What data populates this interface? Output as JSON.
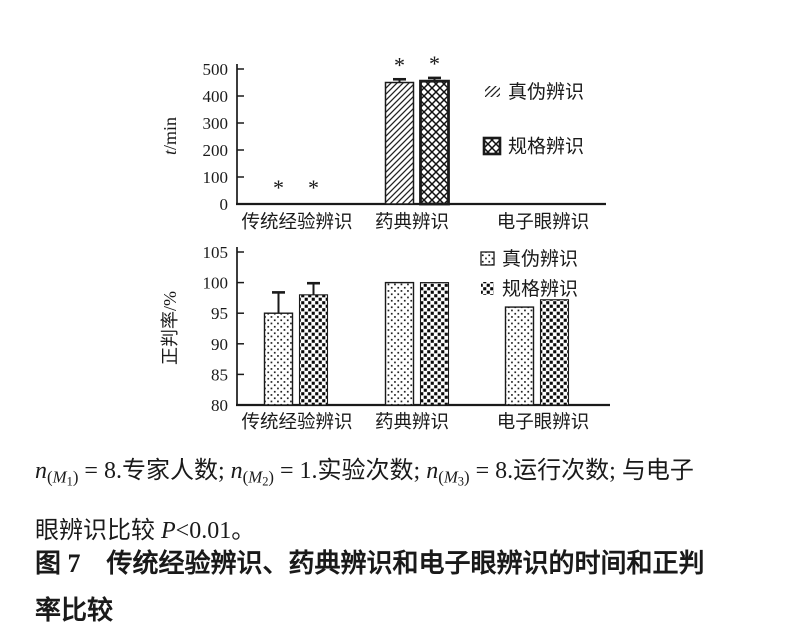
{
  "page": {
    "background": "#ffffff",
    "ink": "#1a1a1a"
  },
  "chart_data": [
    {
      "id": "time-chart",
      "type": "bar",
      "title": "",
      "xlabel": "",
      "ylabel": "t/min",
      "ylabel_parts": [
        {
          "t": "t",
          "italic": true
        },
        {
          "t": "/min",
          "italic": false
        }
      ],
      "ylim": [
        0,
        500
      ],
      "yticks": [
        0,
        100,
        200,
        300,
        400,
        500
      ],
      "grid": false,
      "legend_position": "right-top",
      "categories": [
        "传统经验辨识",
        "药典辨识",
        "电子眼辨识"
      ],
      "series": [
        {
          "name": "真伪辨识",
          "pattern": "diag",
          "values": [
            0,
            450,
            0
          ],
          "errors_plus": [
            0,
            12,
            0
          ]
        },
        {
          "name": "规格辨识",
          "pattern": "cross",
          "values": [
            0,
            455,
            0
          ],
          "errors_plus": [
            0,
            12,
            0
          ]
        }
      ],
      "significance": {
        "marker": "*",
        "per_category": [
          [
            true,
            true
          ],
          [
            true,
            true
          ],
          [
            false,
            false
          ]
        ],
        "meaning": "与电子眼辨识比较 P<0.01"
      }
    },
    {
      "id": "accuracy-chart",
      "type": "bar",
      "title": "",
      "xlabel": "",
      "ylabel": "正判率/%",
      "ylabel_parts": [
        {
          "t": "正判率/%",
          "italic": false
        }
      ],
      "ylim": [
        80,
        105
      ],
      "yticks": [
        80,
        85,
        90,
        95,
        100,
        105
      ],
      "grid": false,
      "legend_position": "right-top",
      "categories": [
        "传统经验辨识",
        "药典辨识",
        "电子眼辨识"
      ],
      "series": [
        {
          "name": "真伪辨识",
          "pattern": "dots",
          "values": [
            95,
            100,
            96
          ],
          "errors_plus": [
            3.4,
            0,
            0
          ]
        },
        {
          "name": "规格辨识",
          "pattern": "checker",
          "values": [
            98,
            100,
            97.2
          ],
          "errors_plus": [
            1.9,
            0,
            0
          ]
        }
      ],
      "significance": {
        "marker": "*",
        "per_category": [
          [
            false,
            false
          ],
          [
            false,
            false
          ],
          [
            false,
            false
          ]
        ],
        "meaning": ""
      }
    }
  ],
  "note": {
    "segments": [
      {
        "c": "i",
        "t": "n"
      },
      {
        "c": "s",
        "t": "("
      },
      {
        "c": "si",
        "t": "M"
      },
      {
        "c": "s2",
        "t": "1"
      },
      {
        "c": "s",
        "t": ")"
      },
      {
        "c": "",
        "t": " = 8.专家人数; "
      },
      {
        "c": "i",
        "t": "n"
      },
      {
        "c": "s",
        "t": "("
      },
      {
        "c": "si",
        "t": "M"
      },
      {
        "c": "s2",
        "t": "2"
      },
      {
        "c": "s",
        "t": ")"
      },
      {
        "c": "",
        "t": " = 1.实验次数; "
      },
      {
        "c": "i",
        "t": "n"
      },
      {
        "c": "s",
        "t": "("
      },
      {
        "c": "si",
        "t": "M"
      },
      {
        "c": "s2",
        "t": "3"
      },
      {
        "c": "s",
        "t": ")"
      },
      {
        "c": "",
        "t": " = 8.运行次数; 与电子"
      },
      {
        "br": true
      },
      {
        "c": "",
        "t": "眼辨识比较 "
      },
      {
        "c": "i",
        "t": "P"
      },
      {
        "c": "",
        "t": "<0.01。"
      }
    ]
  },
  "figure_caption": {
    "text": "图 7　传统经验辨识、药典辨识和电子眼辨识的时间和正判\n率比较"
  }
}
